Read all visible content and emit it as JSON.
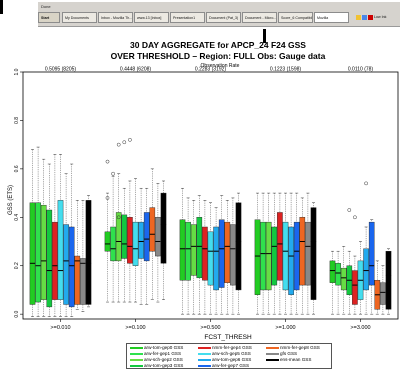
{
  "taskbar": {
    "menu_text": "Done",
    "start_label": "Start",
    "tasks": [
      "My Documents",
      "Inbox - Mozilla Th...",
      "www.13 [Inbox]",
      "Presentation1",
      "Document (Pat_3)",
      "Document - Micro...",
      "Score_6 Compatibil...",
      "Mozilla"
    ],
    "tray_text": "Low Ink"
  },
  "chart_data": {
    "type": "box",
    "title": "30 DAY AGGREGATE for APCP_24 F24 GSS",
    "subtitle": "OVER THRESHOLD – Region: FULL Obs: Gauge data",
    "top_axis_label": "Observation Rate",
    "top_labels": [
      "0.5095 (8205)",
      "0.4448 (6208)",
      "0.2283 (3192)",
      "0.1223 (1598)",
      "0.0110 (78)"
    ],
    "xlabel": "FCST_THRESH",
    "ylabel": "GSS (ETS)",
    "ylim": [
      -0.02,
      1.0
    ],
    "yticks": [
      "0.0",
      "0.2",
      "0.4",
      "0.6",
      "0.8",
      "1.0"
    ],
    "categories": [
      ">=0.010",
      ">=0.100",
      ">=0.500",
      ">=1.000",
      ">=3.000"
    ],
    "series": [
      {
        "name": "arw-tom-gep0 GSS",
        "color": "#22cc22"
      },
      {
        "name": "arw-fer-gep1 GSS",
        "color": "#2fe14d"
      },
      {
        "name": "arw-sch-gep2 GSS",
        "color": "#66dd44"
      },
      {
        "name": "arw-tom-gep3 GSS",
        "color": "#13c840"
      },
      {
        "name": "nmm-fer-gep4 GSS",
        "color": "#dd2222"
      },
      {
        "name": "arw-sch-gep5 GSS",
        "color": "#44ddee"
      },
      {
        "name": "arw-tom-gep6 GSS",
        "color": "#22aaee"
      },
      {
        "name": "arw-fer-gep7 GSS",
        "color": "#1a66ee"
      },
      {
        "name": "nmm-fer-gep8 GSS",
        "color": "#ee6622"
      },
      {
        "name": "gfs GSS",
        "color": "#888888"
      },
      {
        "name": "ens-mean GSS",
        "color": "#000000"
      }
    ],
    "legend_order": [
      "arw-tom-gep0 GSS",
      "nmm-fer-gep4 GSS",
      "nmm-fer-gep8 GSS",
      "arw-fer-gep1 GSS",
      "arw-sch-gep5 GSS",
      "gfs GSS",
      "arw-sch-gep2 GSS",
      "arw-tom-gep6 GSS",
      "ens-mean GSS",
      "arw-tom-gep3 GSS",
      "arw-fer-gep7 GSS"
    ],
    "groups": [
      {
        "boxes": [
          {
            "q1": 0.04,
            "med": 0.21,
            "q3": 0.46,
            "lo": -0.01,
            "hi": 0.68
          },
          {
            "q1": 0.05,
            "med": 0.2,
            "q3": 0.46,
            "lo": -0.01,
            "hi": 0.69
          },
          {
            "q1": 0.06,
            "med": 0.22,
            "q3": 0.45,
            "lo": -0.01,
            "hi": 0.64
          },
          {
            "q1": 0.03,
            "med": 0.18,
            "q3": 0.43,
            "lo": -0.01,
            "hi": 0.62
          },
          {
            "q1": 0.06,
            "med": 0.2,
            "q3": 0.38,
            "lo": -0.01,
            "hi": 0.66
          },
          {
            "q1": 0.06,
            "med": 0.18,
            "q3": 0.47,
            "lo": -0.01,
            "hi": 0.66
          },
          {
            "q1": 0.04,
            "med": 0.22,
            "q3": 0.37,
            "lo": -0.01,
            "hi": 0.58
          },
          {
            "q1": 0.03,
            "med": 0.2,
            "q3": 0.36,
            "lo": -0.01,
            "hi": 0.62
          },
          {
            "q1": 0.04,
            "med": 0.22,
            "q3": 0.24,
            "lo": 0.02,
            "hi": 0.47
          },
          {
            "q1": 0.04,
            "med": 0.21,
            "q3": 0.23,
            "lo": 0.01,
            "hi": 0.47
          },
          {
            "q1": 0.04,
            "med": 0.21,
            "q3": 0.47,
            "lo": 0.03,
            "hi": 0.49
          }
        ],
        "outliers": []
      },
      {
        "boxes": [
          {
            "q1": 0.26,
            "med": 0.29,
            "q3": 0.34,
            "lo": 0.05,
            "hi": 0.5
          },
          {
            "q1": 0.22,
            "med": 0.27,
            "q3": 0.36,
            "lo": 0.05,
            "hi": 0.57
          },
          {
            "q1": 0.22,
            "med": 0.3,
            "q3": 0.42,
            "lo": 0.05,
            "hi": 0.58
          },
          {
            "q1": 0.23,
            "med": 0.29,
            "q3": 0.41,
            "lo": 0.05,
            "hi": 0.52
          },
          {
            "q1": 0.21,
            "med": 0.28,
            "q3": 0.4,
            "lo": 0.05,
            "hi": 0.55
          },
          {
            "q1": 0.2,
            "med": 0.27,
            "q3": 0.38,
            "lo": 0.05,
            "hi": 0.56
          },
          {
            "q1": 0.23,
            "med": 0.3,
            "q3": 0.38,
            "lo": 0.04,
            "hi": 0.52
          },
          {
            "q1": 0.22,
            "med": 0.31,
            "q3": 0.42,
            "lo": 0.04,
            "hi": 0.52
          },
          {
            "q1": 0.26,
            "med": 0.33,
            "q3": 0.44,
            "lo": 0.06,
            "hi": 0.6
          },
          {
            "q1": 0.24,
            "med": 0.3,
            "q3": 0.4,
            "lo": 0.05,
            "hi": 0.54
          },
          {
            "q1": 0.21,
            "med": 0.37,
            "q3": 0.5,
            "lo": 0.06,
            "hi": 0.55
          }
        ],
        "outliers": [
          [
            0,
            0.63
          ],
          [
            1,
            0.58
          ],
          [
            2,
            0.7
          ],
          [
            3,
            0.71
          ],
          [
            4,
            0.72
          ],
          [
            0,
            0.48
          ],
          [
            2,
            0.4
          ]
        ]
      },
      {
        "boxes": [
          {
            "q1": 0.14,
            "med": 0.27,
            "q3": 0.39,
            "lo": 0.0,
            "hi": 0.52
          },
          {
            "q1": 0.14,
            "med": 0.27,
            "q3": 0.38,
            "lo": 0.0,
            "hi": 0.48
          },
          {
            "q1": 0.16,
            "med": 0.28,
            "q3": 0.37,
            "lo": 0.0,
            "hi": 0.47
          },
          {
            "q1": 0.15,
            "med": 0.28,
            "q3": 0.4,
            "lo": 0.0,
            "hi": 0.49
          },
          {
            "q1": 0.14,
            "med": 0.27,
            "q3": 0.36,
            "lo": 0.0,
            "hi": 0.47
          },
          {
            "q1": 0.12,
            "med": 0.26,
            "q3": 0.34,
            "lo": 0.0,
            "hi": 0.46
          },
          {
            "q1": 0.1,
            "med": 0.26,
            "q3": 0.36,
            "lo": 0.0,
            "hi": 0.44
          },
          {
            "q1": 0.11,
            "med": 0.27,
            "q3": 0.39,
            "lo": 0.0,
            "hi": 0.49
          },
          {
            "q1": 0.13,
            "med": 0.28,
            "q3": 0.38,
            "lo": 0.0,
            "hi": 0.47
          },
          {
            "q1": 0.12,
            "med": 0.27,
            "q3": 0.37,
            "lo": 0.0,
            "hi": 0.48
          },
          {
            "q1": 0.1,
            "med": 0.3,
            "q3": 0.46,
            "lo": 0.0,
            "hi": 0.5
          }
        ],
        "outliers": []
      },
      {
        "boxes": [
          {
            "q1": 0.08,
            "med": 0.24,
            "q3": 0.39,
            "lo": 0.0,
            "hi": 0.5
          },
          {
            "q1": 0.1,
            "med": 0.25,
            "q3": 0.38,
            "lo": 0.0,
            "hi": 0.5
          },
          {
            "q1": 0.1,
            "med": 0.25,
            "q3": 0.38,
            "lo": 0.0,
            "hi": 0.5
          },
          {
            "q1": 0.12,
            "med": 0.28,
            "q3": 0.36,
            "lo": 0.0,
            "hi": 0.5
          },
          {
            "q1": 0.14,
            "med": 0.29,
            "q3": 0.42,
            "lo": 0.0,
            "hi": 0.5
          },
          {
            "q1": 0.1,
            "med": 0.26,
            "q3": 0.38,
            "lo": 0.0,
            "hi": 0.5
          },
          {
            "q1": 0.08,
            "med": 0.24,
            "q3": 0.36,
            "lo": 0.0,
            "hi": 0.5
          },
          {
            "q1": 0.1,
            "med": 0.26,
            "q3": 0.38,
            "lo": 0.0,
            "hi": 0.5
          },
          {
            "q1": 0.12,
            "med": 0.3,
            "q3": 0.4,
            "lo": 0.0,
            "hi": 0.48
          },
          {
            "q1": 0.12,
            "med": 0.28,
            "q3": 0.38,
            "lo": 0.0,
            "hi": 0.5
          },
          {
            "q1": 0.06,
            "med": 0.3,
            "q3": 0.44,
            "lo": 0.0,
            "hi": 0.46
          }
        ],
        "outliers": []
      },
      {
        "boxes": [
          {
            "q1": 0.13,
            "med": 0.18,
            "q3": 0.22,
            "lo": 0.0,
            "hi": 0.26
          },
          {
            "q1": 0.12,
            "med": 0.17,
            "q3": 0.21,
            "lo": 0.0,
            "hi": 0.26
          },
          {
            "q1": 0.1,
            "med": 0.15,
            "q3": 0.19,
            "lo": 0.0,
            "hi": 0.28
          },
          {
            "q1": 0.08,
            "med": 0.14,
            "q3": 0.2,
            "lo": 0.0,
            "hi": 0.26
          },
          {
            "q1": 0.04,
            "med": 0.12,
            "q3": 0.18,
            "lo": 0.0,
            "hi": 0.24
          },
          {
            "q1": 0.06,
            "med": 0.14,
            "q3": 0.22,
            "lo": 0.0,
            "hi": 0.3
          },
          {
            "q1": 0.1,
            "med": 0.18,
            "q3": 0.27,
            "lo": 0.0,
            "hi": 0.36
          },
          {
            "q1": 0.12,
            "med": 0.2,
            "q3": 0.38,
            "lo": 0.0,
            "hi": 0.39
          },
          {
            "q1": 0.02,
            "med": 0.08,
            "q3": 0.14,
            "lo": 0.0,
            "hi": 0.22
          },
          {
            "q1": 0.04,
            "med": 0.09,
            "q3": 0.13,
            "lo": 0.0,
            "hi": 0.2
          },
          {
            "q1": 0.02,
            "med": 0.16,
            "q3": 0.26,
            "lo": 0.0,
            "hi": 0.27
          }
        ],
        "outliers": [
          [
            3,
            0.43
          ],
          [
            6,
            0.54
          ],
          [
            4,
            0.4
          ]
        ]
      }
    ]
  }
}
